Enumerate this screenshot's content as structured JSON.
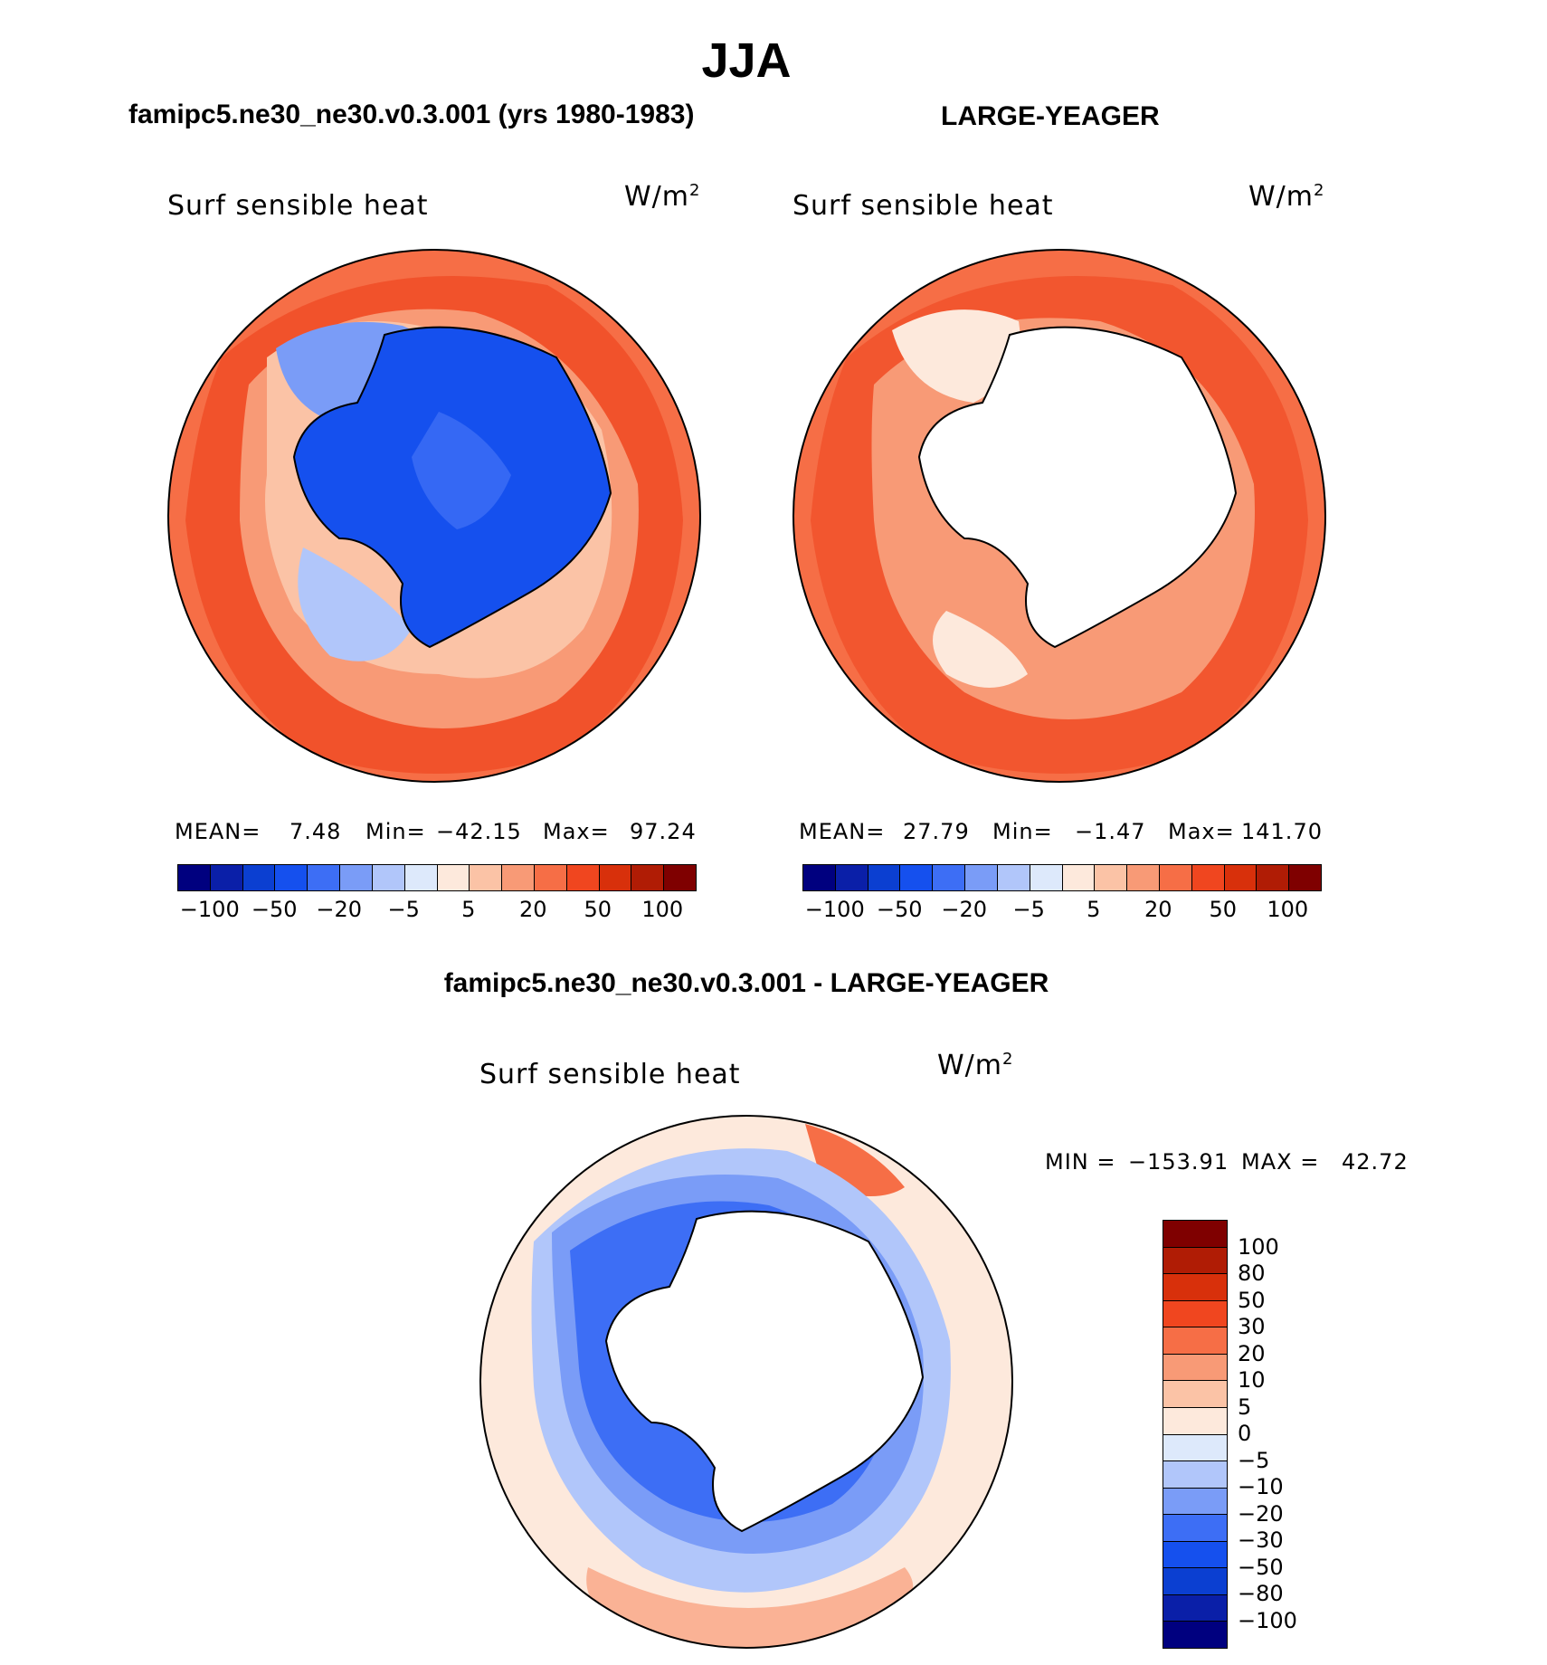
{
  "main_title": "JJA",
  "panels": {
    "left": {
      "title": "famipc5.ne30_ne30.v0.3.001 (yrs 1980-1983)",
      "variable": "Surf  sensible  heat",
      "units": "W/m",
      "units_sup": "2",
      "mean_label": "MEAN=",
      "mean": "7.48",
      "min_label": "Min=",
      "min": "−42.15",
      "max_label": "Max=",
      "max": "97.24"
    },
    "right": {
      "title": "LARGE-YEAGER",
      "variable": "Surf  sensible  heat",
      "units": "W/m",
      "units_sup": "2",
      "mean_label": "MEAN=",
      "mean": "27.79",
      "min_label": "Min=",
      "min": "−1.47",
      "max_label": "Max=",
      "max": "141.70"
    },
    "diff": {
      "title": "famipc5.ne30_ne30.v0.3.001 - LARGE-YEAGER",
      "variable": "Surf  sensible  heat",
      "units": "W/m",
      "units_sup": "2",
      "min_label": "MIN =",
      "min": "−153.91",
      "max_label": "MAX =",
      "max": "42.72"
    }
  },
  "colorbar_abs": {
    "colors": [
      "#00007f",
      "#0a1fa8",
      "#0b3fd1",
      "#1550ee",
      "#3d6ef5",
      "#7a9cf7",
      "#b1c6fa",
      "#dde9fb",
      "#fde9dc",
      "#fbc3a6",
      "#f89a76",
      "#f66e46",
      "#f0461f",
      "#d8300b",
      "#b01c05",
      "#7f0000"
    ],
    "tick_labels": [
      "−100",
      "−50",
      "−20",
      "−5",
      "5",
      "20",
      "50",
      "100"
    ]
  },
  "colorbar_diff": {
    "colors": [
      "#7f0000",
      "#b01c05",
      "#d8300b",
      "#f0461f",
      "#f66e46",
      "#f89a76",
      "#fbc3a6",
      "#fde9dc",
      "#dde9fb",
      "#b1c6fa",
      "#7a9cf7",
      "#3d6ef5",
      "#1550ee",
      "#0b3fd1",
      "#0a1fa8",
      "#00007f"
    ],
    "tick_labels": [
      "100",
      "80",
      "50",
      "30",
      "20",
      "10",
      "5",
      "0",
      "−5",
      "−10",
      "−20",
      "−30",
      "−50",
      "−80",
      "−100"
    ]
  }
}
